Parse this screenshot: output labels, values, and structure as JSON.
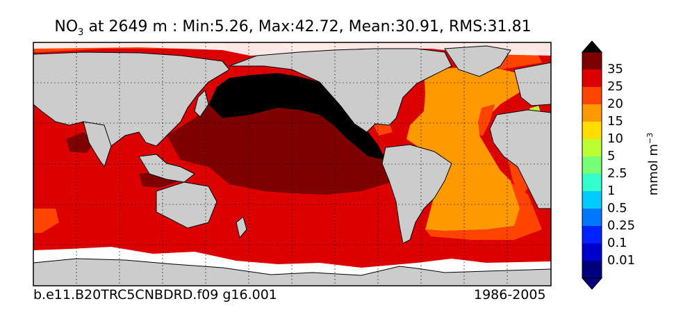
{
  "title": {
    "var": "NO",
    "sub": "3",
    "rest": " at 2649 m : Min:5.26, Max:42.72, Mean:30.91, RMS:31.81"
  },
  "footer": {
    "left": "b.e11.B20TRC5CNBDRD.f09 g16.001",
    "right": "1986-2005"
  },
  "colorbar": {
    "unit_base": "mmol m",
    "unit_exp": "−3",
    "levels": [
      "0.01",
      "0.1",
      "0.25",
      "0.5",
      "1",
      "2.5",
      "5",
      "10",
      "15",
      "20",
      "25",
      "35"
    ],
    "colors": [
      "#00007f",
      "#0000cc",
      "#0022ff",
      "#0077ff",
      "#00ccff",
      "#33ffcc",
      "#77ff77",
      "#bbff33",
      "#ffdd00",
      "#ff9900",
      "#ff4400",
      "#dd0000",
      "#7f0000"
    ],
    "extend": "both"
  },
  "map": {
    "land_color": "#cccccc",
    "ice_color": "#ffffff",
    "grid": "dotted"
  }
}
